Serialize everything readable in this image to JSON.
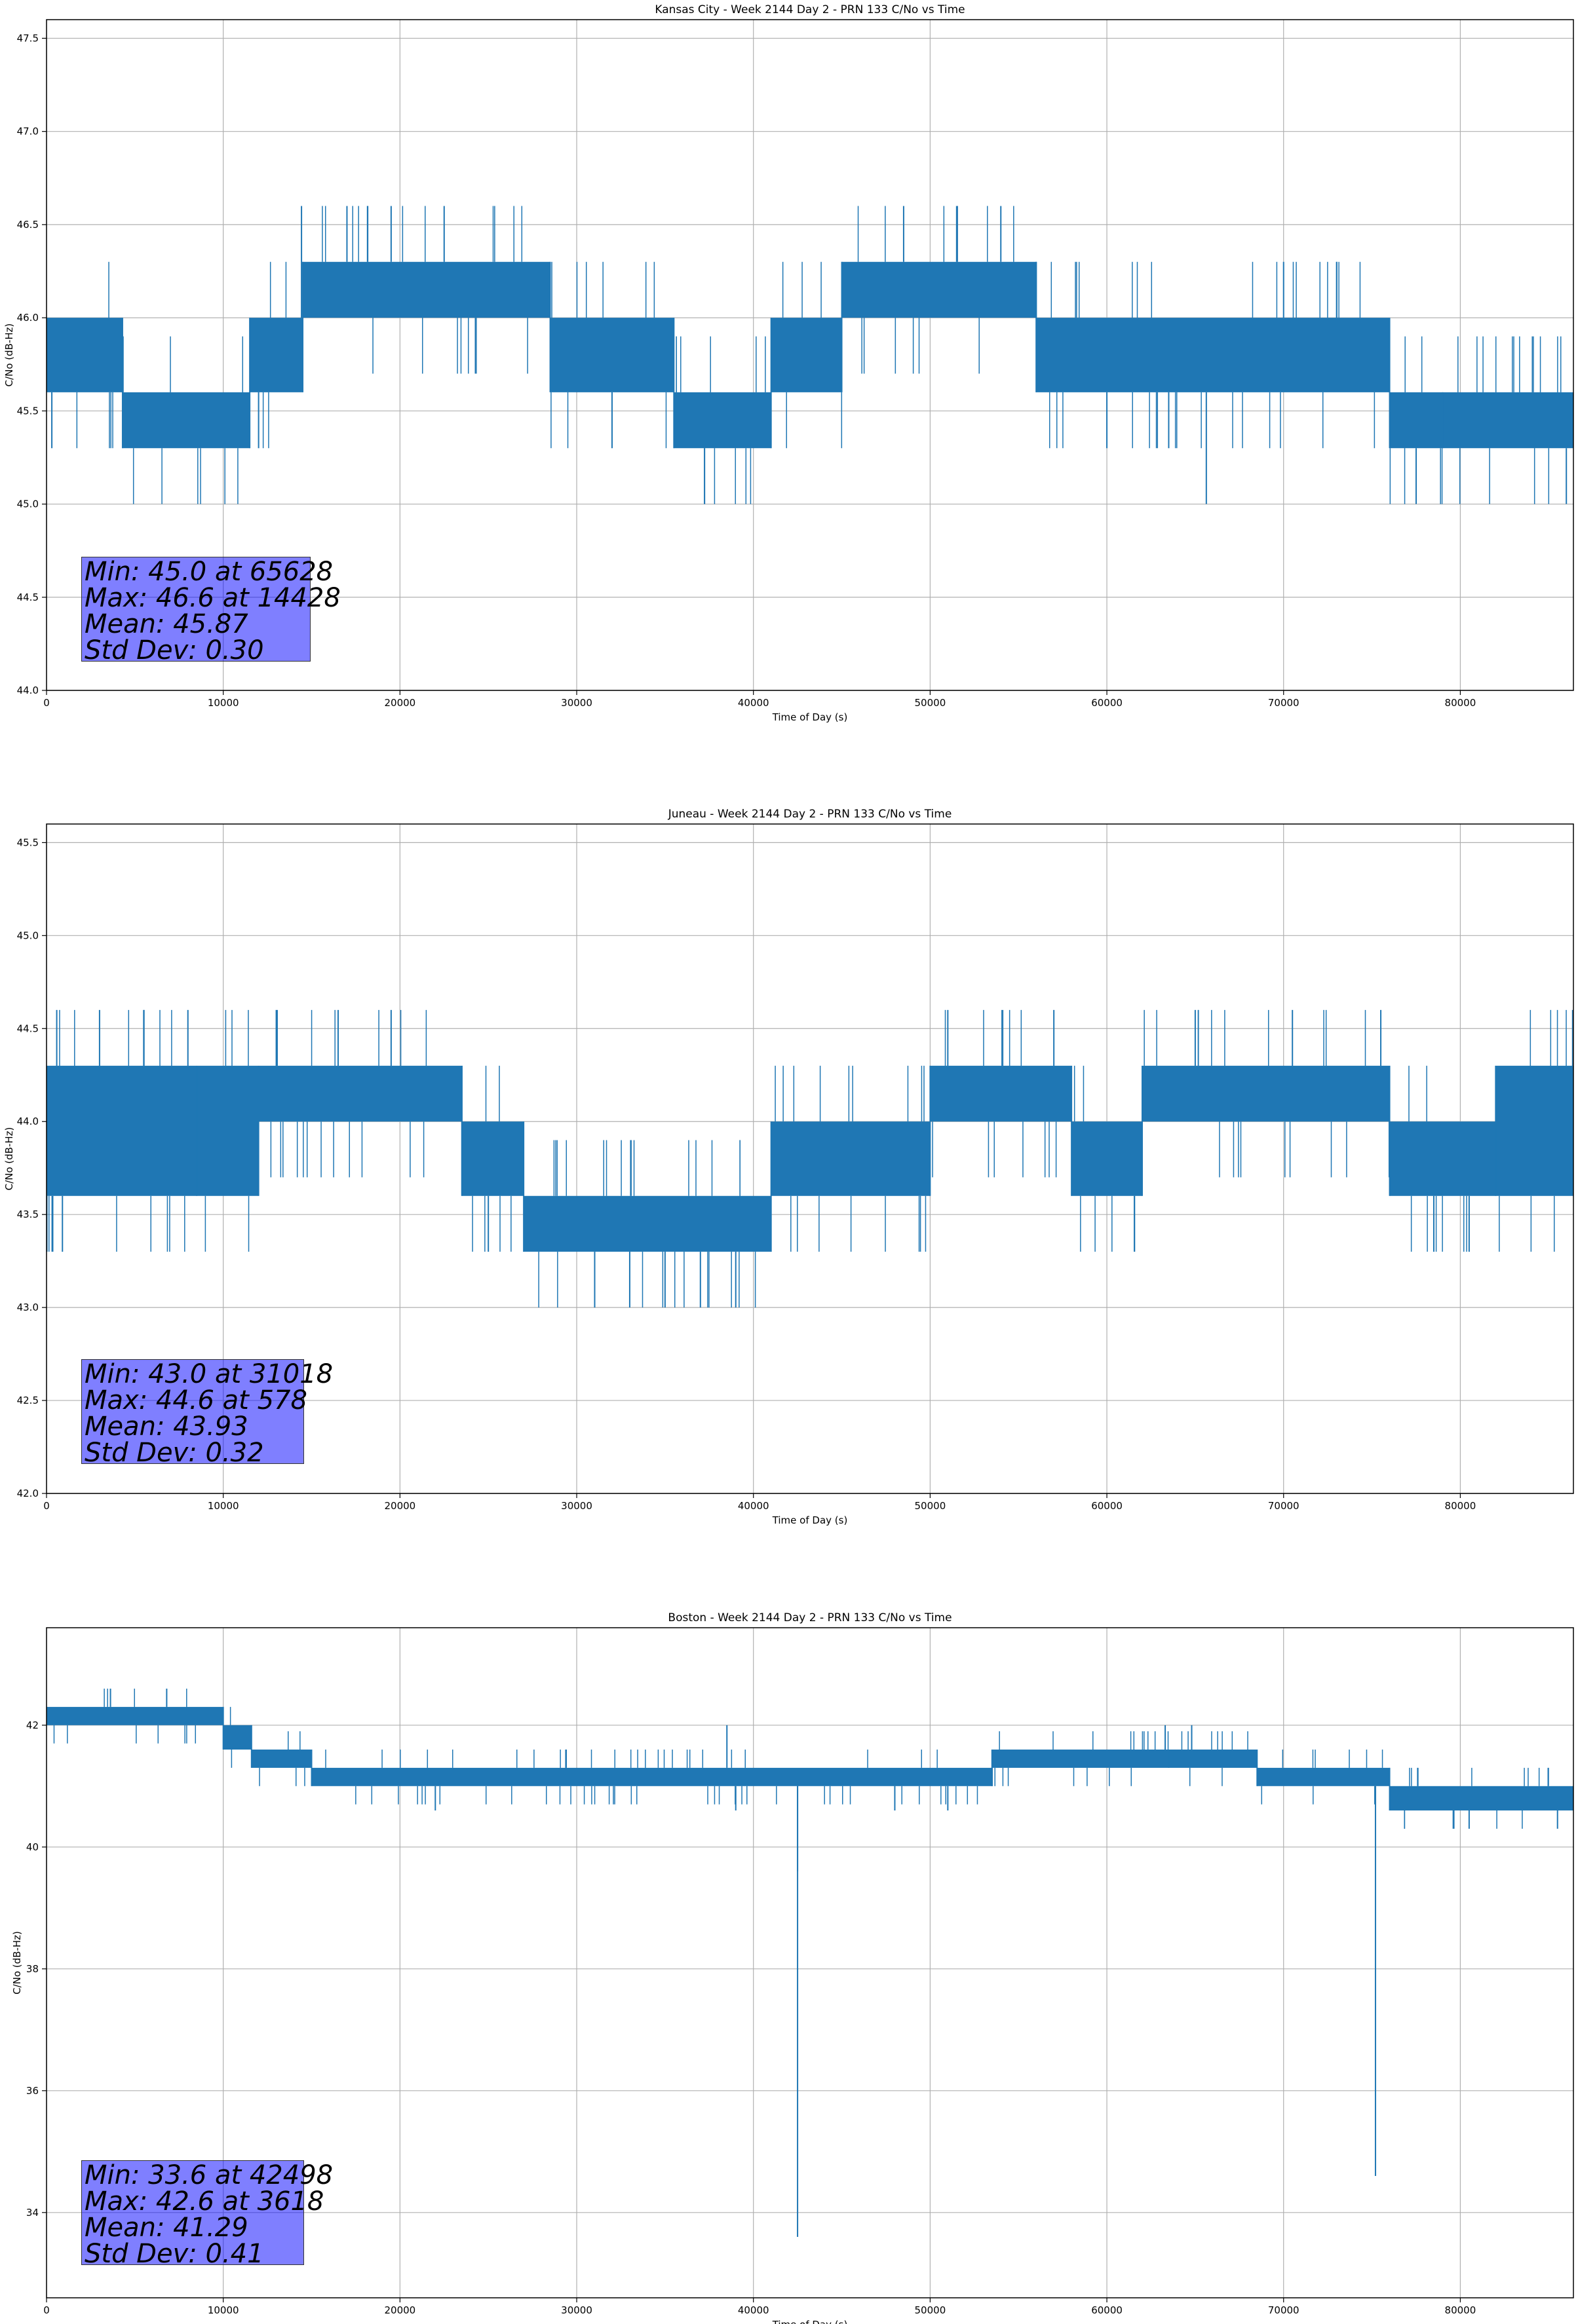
{
  "chart_data": [
    {
      "type": "line",
      "title": "Kansas City - Week 2144 Day 2 - PRN 133 C/No vs Time",
      "xlabel": "Time of Day (s)",
      "ylabel": "C/No (dB-Hz)",
      "xlim": [
        0,
        86400
      ],
      "ylim": [
        44.0,
        47.6
      ],
      "xticks": [
        0,
        10000,
        20000,
        30000,
        40000,
        50000,
        60000,
        70000,
        80000
      ],
      "yticks": [
        44.0,
        44.5,
        45.0,
        45.5,
        46.0,
        46.5,
        47.0,
        47.5
      ],
      "ytick_decimals": 1,
      "grid": true,
      "series_color": "#1f77b4",
      "segments": [
        {
          "x": [
            0,
            4300
          ],
          "lo": 45.6,
          "hi": 46.0
        },
        {
          "x": [
            4300,
            11500
          ],
          "lo": 45.3,
          "hi": 45.6
        },
        {
          "x": [
            11500,
            14500
          ],
          "lo": 45.6,
          "hi": 46.0
        },
        {
          "x": [
            14500,
            28500
          ],
          "lo": 46.0,
          "hi": 46.3
        },
        {
          "x": [
            28500,
            35500
          ],
          "lo": 45.6,
          "hi": 46.0
        },
        {
          "x": [
            35500,
            41000
          ],
          "lo": 45.3,
          "hi": 45.6
        },
        {
          "x": [
            41000,
            45000
          ],
          "lo": 45.6,
          "hi": 46.0
        },
        {
          "x": [
            45000,
            56000
          ],
          "lo": 46.0,
          "hi": 46.3
        },
        {
          "x": [
            56000,
            76000
          ],
          "lo": 45.6,
          "hi": 46.0
        },
        {
          "x": [
            76000,
            86400
          ],
          "lo": 45.3,
          "hi": 45.6
        }
      ],
      "spikes": [
        {
          "x": 65628,
          "y": 45.0
        },
        {
          "x": 77500,
          "y": 45.0
        },
        {
          "x": 86000,
          "y": 45.0
        },
        {
          "x": 14428,
          "y": 46.6
        },
        {
          "x": 17000,
          "y": 46.6
        },
        {
          "x": 19500,
          "y": 46.6
        },
        {
          "x": 22500,
          "y": 46.6
        },
        {
          "x": 48500,
          "y": 46.6
        },
        {
          "x": 51500,
          "y": 46.6
        },
        {
          "x": 54000,
          "y": 46.6
        },
        {
          "x": 300,
          "y": 45.3
        },
        {
          "x": 12000,
          "y": 45.3
        },
        {
          "x": 32000,
          "y": 45.3
        },
        {
          "x": 60000,
          "y": 45.3
        },
        {
          "x": 63500,
          "y": 45.3
        },
        {
          "x": 79000,
          "y": 45.3
        },
        {
          "x": 70000,
          "y": 46.3
        },
        {
          "x": 73000,
          "y": 46.3
        }
      ],
      "stats": [
        "Min: 45.0 at 65628",
        "Max: 46.6 at 14428",
        "Mean: 45.87",
        "Std Dev: 0.30"
      ]
    },
    {
      "type": "line",
      "title": "Juneau - Week 2144 Day 2 - PRN 133 C/No vs Time",
      "xlabel": "Time of Day (s)",
      "ylabel": "C/No (dB-Hz)",
      "xlim": [
        0,
        86400
      ],
      "ylim": [
        42.0,
        45.6
      ],
      "xticks": [
        0,
        10000,
        20000,
        30000,
        40000,
        50000,
        60000,
        70000,
        80000
      ],
      "yticks": [
        42.0,
        42.5,
        43.0,
        43.5,
        44.0,
        44.5,
        45.0,
        45.5
      ],
      "ytick_decimals": 1,
      "grid": true,
      "series_color": "#1f77b4",
      "segments": [
        {
          "x": [
            0,
            8500
          ],
          "lo": 43.6,
          "hi": 44.3
        },
        {
          "x": [
            8500,
            12000
          ],
          "lo": 43.6,
          "hi": 44.3
        },
        {
          "x": [
            12000,
            23500
          ],
          "lo": 44.0,
          "hi": 44.3
        },
        {
          "x": [
            23500,
            27000
          ],
          "lo": 43.6,
          "hi": 44.0
        },
        {
          "x": [
            27000,
            41000
          ],
          "lo": 43.3,
          "hi": 43.6
        },
        {
          "x": [
            41000,
            50000
          ],
          "lo": 43.6,
          "hi": 44.0
        },
        {
          "x": [
            50000,
            58000
          ],
          "lo": 44.0,
          "hi": 44.3
        },
        {
          "x": [
            58000,
            62000
          ],
          "lo": 43.6,
          "hi": 44.0
        },
        {
          "x": [
            62000,
            76000
          ],
          "lo": 44.0,
          "hi": 44.3
        },
        {
          "x": [
            76000,
            82000
          ],
          "lo": 43.6,
          "hi": 44.0
        },
        {
          "x": [
            82000,
            86400
          ],
          "lo": 43.6,
          "hi": 44.3
        }
      ],
      "spikes": [
        {
          "x": 31018,
          "y": 43.0
        },
        {
          "x": 33000,
          "y": 43.0
        },
        {
          "x": 35000,
          "y": 43.0
        },
        {
          "x": 37000,
          "y": 43.0
        },
        {
          "x": 39000,
          "y": 43.0
        },
        {
          "x": 578,
          "y": 44.6
        },
        {
          "x": 3000,
          "y": 44.6
        },
        {
          "x": 5500,
          "y": 44.6
        },
        {
          "x": 8000,
          "y": 44.6
        },
        {
          "x": 13000,
          "y": 44.6
        },
        {
          "x": 16500,
          "y": 44.6
        },
        {
          "x": 19500,
          "y": 44.6
        },
        {
          "x": 51000,
          "y": 44.6
        },
        {
          "x": 57000,
          "y": 44.6
        },
        {
          "x": 65000,
          "y": 44.6
        },
        {
          "x": 70500,
          "y": 44.6
        },
        {
          "x": 75500,
          "y": 44.6
        },
        {
          "x": 900,
          "y": 43.3
        },
        {
          "x": 25000,
          "y": 43.3
        },
        {
          "x": 78500,
          "y": 43.3
        },
        {
          "x": 80500,
          "y": 43.3
        }
      ],
      "stats": [
        "Min: 43.0 at 31018",
        "Max: 44.6 at 578",
        "Mean: 43.93",
        "Std Dev: 0.32"
      ]
    },
    {
      "type": "line",
      "title": "Boston - Week 2144 Day 2 - PRN 133 C/No vs Time",
      "xlabel": "Time of Day (s)",
      "ylabel": "C/No (dB-Hz)",
      "xlim": [
        0,
        86400
      ],
      "ylim": [
        32.6,
        43.6
      ],
      "xticks": [
        0,
        10000,
        20000,
        30000,
        40000,
        50000,
        60000,
        70000,
        80000
      ],
      "yticks": [
        34,
        36,
        38,
        40,
        42
      ],
      "ytick_decimals": 0,
      "grid": true,
      "series_color": "#1f77b4",
      "segments": [
        {
          "x": [
            0,
            10000
          ],
          "lo": 42.0,
          "hi": 42.3
        },
        {
          "x": [
            10000,
            11600
          ],
          "lo": 41.6,
          "hi": 42.0
        },
        {
          "x": [
            11600,
            15000
          ],
          "lo": 41.3,
          "hi": 41.6
        },
        {
          "x": [
            15000,
            53500
          ],
          "lo": 41.0,
          "hi": 41.3
        },
        {
          "x": [
            53500,
            63500
          ],
          "lo": 41.3,
          "hi": 41.6
        },
        {
          "x": [
            63500,
            68500
          ],
          "lo": 41.3,
          "hi": 41.6
        },
        {
          "x": [
            68500,
            76000
          ],
          "lo": 41.0,
          "hi": 41.3
        },
        {
          "x": [
            76000,
            86400
          ],
          "lo": 40.6,
          "hi": 41.0
        }
      ],
      "spikes": [
        {
          "x": 42498,
          "y": 33.6
        },
        {
          "x": 75200,
          "y": 34.6
        },
        {
          "x": 42498,
          "y": 39.6
        },
        {
          "x": 3618,
          "y": 42.6
        },
        {
          "x": 6800,
          "y": 42.6
        },
        {
          "x": 38500,
          "y": 42.0
        },
        {
          "x": 63300,
          "y": 42.0
        },
        {
          "x": 64800,
          "y": 42.0
        },
        {
          "x": 39000,
          "y": 40.6
        },
        {
          "x": 48000,
          "y": 40.6
        },
        {
          "x": 51000,
          "y": 40.6
        },
        {
          "x": 22000,
          "y": 40.6
        },
        {
          "x": 80500,
          "y": 40.3
        },
        {
          "x": 85500,
          "y": 40.3
        }
      ],
      "stats": [
        "Min: 33.6 at 42498",
        "Max: 42.6 at 3618",
        "Mean: 41.29",
        "Std Dev: 0.41"
      ]
    }
  ]
}
